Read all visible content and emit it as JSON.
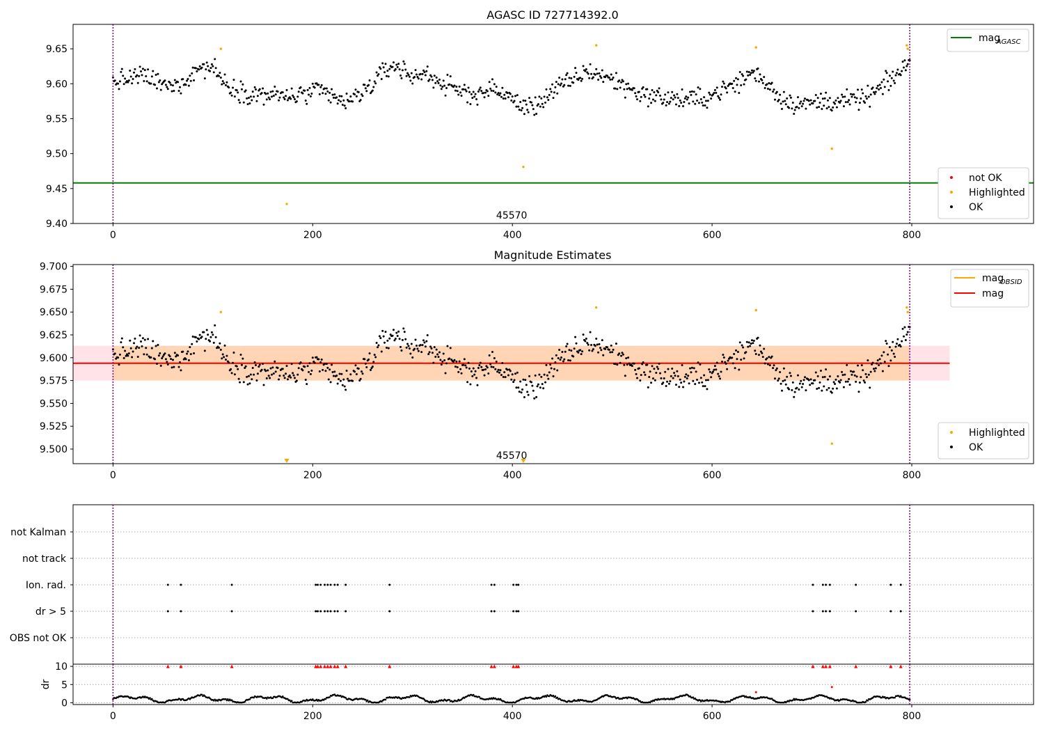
{
  "figure": {
    "title": "AGASC ID 727714392.0",
    "subtitle": "Magnitude Estimates"
  },
  "chart_data": [
    {
      "type": "scatter",
      "id": "agasc-panel",
      "title": "AGASC ID 727714392.0",
      "xlim": [
        -40,
        922
      ],
      "ylim": [
        9.4,
        9.685
      ],
      "x_ticks": [
        0,
        200,
        400,
        600,
        800
      ],
      "y_ticks": [
        "9.40",
        "9.45",
        "9.50",
        "9.55",
        "9.60",
        "9.65"
      ],
      "obsid_label": "45570",
      "obsid_label_x": 400,
      "vlines": [
        0,
        798
      ],
      "hline": {
        "name": "mag_AGASC",
        "value": 9.458,
        "color": "#008000"
      },
      "legend_top": [
        {
          "label": "mag",
          "sub": "AGASC",
          "color": "#008000"
        }
      ],
      "legend_bottom": [
        {
          "label": "not OK",
          "color": "#ff0000"
        },
        {
          "label": "Highlighted",
          "color": "#ffa500"
        },
        {
          "label": "OK",
          "color": "#000000"
        }
      ],
      "series": [
        {
          "name": "Highlighted",
          "color": "#ffa500",
          "points": [
            [
              108,
              9.65
            ],
            [
              174,
              9.428
            ],
            [
              411,
              9.481
            ],
            [
              484,
              9.655
            ],
            [
              644,
              9.652
            ],
            [
              720,
              9.507
            ],
            [
              795,
              9.655
            ],
            [
              796,
              9.65
            ]
          ]
        }
      ]
    },
    {
      "type": "scatter",
      "id": "estimates-panel",
      "title": "Magnitude Estimates",
      "xlim": [
        -40,
        922
      ],
      "ylim": [
        9.484,
        9.702
      ],
      "x_ticks": [
        0,
        200,
        400,
        600,
        800
      ],
      "y_ticks": [
        "9.500",
        "9.525",
        "9.550",
        "9.575",
        "9.600",
        "9.625",
        "9.650",
        "9.675",
        "9.700"
      ],
      "obsid_label": "45570",
      "obsid_label_x": 400,
      "vlines": [
        0,
        798
      ],
      "mag": {
        "value": 9.594,
        "color": "#ff0000",
        "band_low": 9.575,
        "band_high": 9.613,
        "x_range": [
          -40,
          838
        ]
      },
      "mag_obsid": {
        "value": 9.594,
        "color": "#ffa500",
        "band_low": 9.575,
        "band_high": 9.613,
        "x_range": [
          0,
          798
        ]
      },
      "legend_top": [
        {
          "label": "mag",
          "sub": "OBSID",
          "color": "#ffa500"
        },
        {
          "label": "mag",
          "sub": "",
          "color": "#ff0000"
        }
      ],
      "legend_bottom": [
        {
          "label": "Highlighted",
          "color": "#ffa500"
        },
        {
          "label": "OK",
          "color": "#000000"
        }
      ],
      "series": [
        {
          "name": "Highlighted",
          "color": "#ffa500",
          "points": [
            [
              108,
              9.65
            ],
            [
              484,
              9.655
            ],
            [
              644,
              9.652
            ],
            [
              720,
              9.506
            ],
            [
              795,
              9.655
            ],
            [
              796,
              9.65
            ]
          ]
        },
        {
          "name": "Highlighted (off scale)",
          "color": "#ffa500",
          "marker": "triangle-down",
          "points": [
            [
              174,
              9.484
            ],
            [
              411,
              9.484
            ]
          ]
        }
      ]
    },
    {
      "type": "scatter",
      "id": "flags-panel",
      "xlim": [
        -40,
        922
      ],
      "categories": [
        "not Kalman",
        "not track",
        "Ion. rad.",
        "dr > 5",
        "OBS not OK"
      ],
      "vlines": [
        0,
        798
      ],
      "flags": {
        "Ion. rad.": [
          55,
          68,
          119,
          203,
          205,
          208,
          212,
          215,
          218,
          222,
          225,
          233,
          277,
          379,
          382,
          401,
          404,
          406,
          701,
          711,
          714,
          718,
          744,
          779,
          789
        ],
        "dr > 5": [
          55,
          68,
          119,
          203,
          205,
          208,
          212,
          215,
          218,
          222,
          225,
          233,
          277,
          379,
          382,
          401,
          404,
          406,
          701,
          711,
          714,
          718,
          744,
          779,
          789
        ]
      }
    },
    {
      "type": "scatter",
      "id": "dr-panel",
      "ylabel": "dr",
      "xlim": [
        -40,
        922
      ],
      "ylim": [
        0,
        10
      ],
      "x_ticks": [
        0,
        200,
        400,
        600,
        800
      ],
      "y_ticks": [
        "0",
        "5",
        "10"
      ],
      "vlines": [
        0,
        798
      ],
      "clipped": [
        55,
        68,
        119,
        203,
        205,
        208,
        212,
        215,
        218,
        222,
        225,
        233,
        277,
        379,
        382,
        401,
        404,
        406,
        701,
        711,
        714,
        718,
        744,
        779,
        789
      ],
      "outliers": [
        [
          644,
          2.9
        ],
        [
          720,
          4.3
        ]
      ]
    }
  ]
}
